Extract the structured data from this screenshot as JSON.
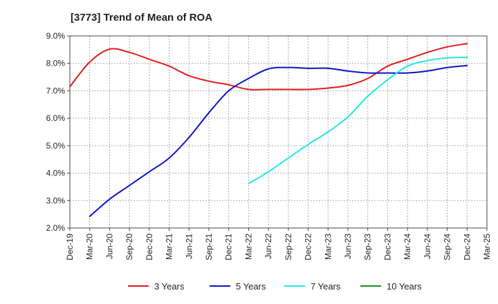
{
  "chart_data": {
    "type": "line",
    "title": "[3773]  Trend of Mean of ROA",
    "xlabel": "",
    "ylabel": "",
    "ylim": [
      2.0,
      9.0
    ],
    "y_ticks": [
      "2.0%",
      "3.0%",
      "4.0%",
      "5.0%",
      "6.0%",
      "7.0%",
      "8.0%",
      "9.0%"
    ],
    "categories": [
      "Dec-19",
      "Mar-20",
      "Jun-20",
      "Sep-20",
      "Dec-20",
      "Mar-21",
      "Jun-21",
      "Sep-21",
      "Dec-21",
      "Mar-22",
      "Jun-22",
      "Sep-22",
      "Dec-22",
      "Mar-23",
      "Jun-23",
      "Sep-23",
      "Dec-23",
      "Mar-24",
      "Jun-24",
      "Sep-24",
      "Dec-24",
      "Mar-25"
    ],
    "grid": true,
    "legend_position": "bottom",
    "series": [
      {
        "name": "3 Years",
        "color": "#e31a1c",
        "values": [
          7.15,
          8.05,
          8.52,
          8.4,
          8.15,
          7.9,
          7.55,
          7.35,
          7.22,
          7.05,
          7.05,
          7.05,
          7.05,
          7.1,
          7.2,
          7.45,
          7.9,
          8.15,
          8.4,
          8.6,
          8.72,
          null
        ]
      },
      {
        "name": "5 Years",
        "color": "#0a14c8",
        "values": [
          null,
          2.42,
          3.05,
          3.55,
          4.05,
          4.55,
          5.3,
          6.2,
          7.0,
          7.45,
          7.8,
          7.85,
          7.82,
          7.82,
          7.72,
          7.65,
          7.65,
          7.65,
          7.72,
          7.85,
          7.92,
          null
        ]
      },
      {
        "name": "7 Years",
        "color": "#22e6e6",
        "values": [
          null,
          null,
          null,
          null,
          null,
          null,
          null,
          null,
          null,
          3.62,
          4.05,
          4.55,
          5.05,
          5.5,
          6.05,
          6.8,
          7.4,
          7.9,
          8.1,
          8.2,
          8.22,
          null
        ]
      },
      {
        "name": "10 Years",
        "color": "#1f8a1f",
        "values": [
          null,
          null,
          null,
          null,
          null,
          null,
          null,
          null,
          null,
          null,
          null,
          null,
          null,
          null,
          null,
          null,
          null,
          null,
          null,
          null,
          null,
          null
        ]
      }
    ]
  }
}
